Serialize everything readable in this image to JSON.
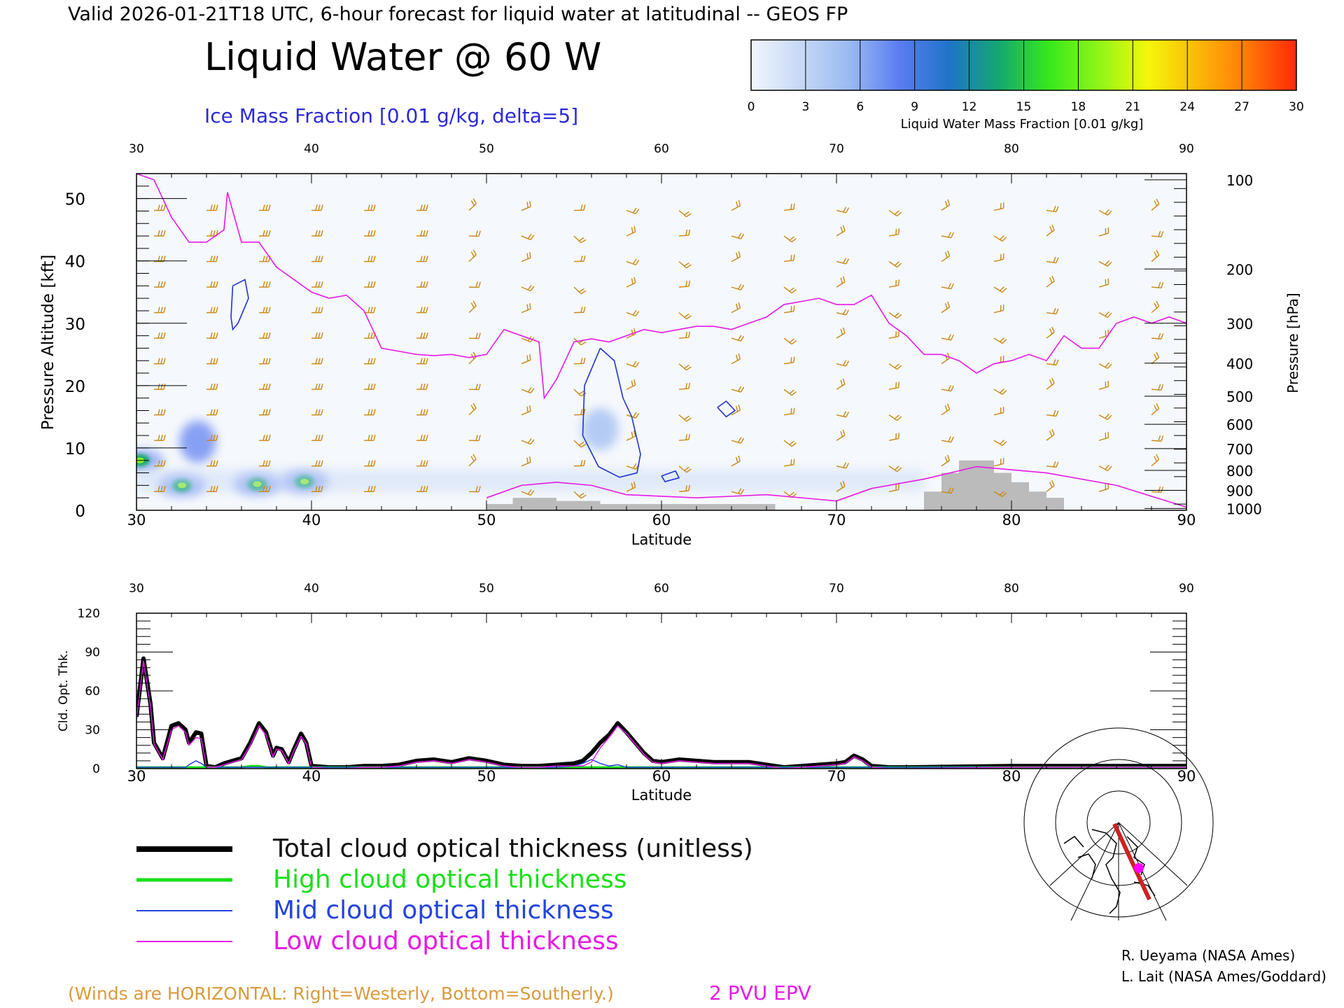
{
  "header": {
    "valid_line": "Valid 2026-01-21T18 UTC, 6-hour forecast for liquid water at latitudinal -- GEOS FP",
    "title": "Liquid Water @ 60 W",
    "ice_label": "Ice Mass Fraction [0.01 g/kg, delta=5]"
  },
  "colorbar": {
    "ticks": [
      "0",
      "3",
      "6",
      "9",
      "12",
      "15",
      "18",
      "21",
      "24",
      "27",
      "30"
    ],
    "label": "Liquid Water Mass Fraction [0.01 g/kg]",
    "colors": [
      "#f2f6fc",
      "#c6d8f6",
      "#9ab9f2",
      "#5a7cf0",
      "#1f74c8",
      "#14a870",
      "#36e81c",
      "#8ef518",
      "#f4f70c",
      "#fbb908",
      "#ff7a08",
      "#ff2808"
    ]
  },
  "colors": {
    "epv": "#e61ae6",
    "ice": "#2233cc",
    "barb": "#c98814",
    "total": "#000000",
    "high": "#18e018",
    "mid": "#2244dd",
    "low": "#e61ae6"
  },
  "chart_data": [
    {
      "type": "heatmap",
      "title": "Liquid Water @ 60 W",
      "xlabel": "Latitude",
      "ylabel": "Pressure Altitude [kft]",
      "y2label": "Pressure [hPa]",
      "xlim": [
        30,
        90
      ],
      "ylim": [
        0,
        54
      ],
      "x_ticks": [
        "30",
        "40",
        "50",
        "60",
        "70",
        "80",
        "90"
      ],
      "y_ticks": [
        "0",
        "10",
        "20",
        "30",
        "40",
        "50"
      ],
      "pressure_ticks": [
        {
          "label": "100",
          "kft": 53
        },
        {
          "label": "200",
          "kft": 38.7
        },
        {
          "label": "300",
          "kft": 30
        },
        {
          "label": "400",
          "kft": 23.6
        },
        {
          "label": "500",
          "kft": 18.3
        },
        {
          "label": "600",
          "kft": 13.8
        },
        {
          "label": "700",
          "kft": 9.9
        },
        {
          "label": "800",
          "kft": 6.4
        },
        {
          "label": "900",
          "kft": 3.2
        },
        {
          "label": "1000",
          "kft": 0.3
        }
      ],
      "epv_2pvu_line": {
        "lat": [
          30,
          31,
          32,
          33,
          34,
          35,
          35.2,
          36,
          37,
          38,
          39,
          40,
          41,
          42,
          43,
          44,
          45,
          46,
          47,
          48,
          49,
          50,
          51,
          52,
          53,
          53.3,
          54,
          55,
          56,
          57,
          58,
          59,
          60,
          61,
          62,
          63,
          64,
          65,
          66,
          67,
          68,
          69,
          70,
          71,
          72,
          73,
          74,
          75,
          76,
          77,
          78,
          79,
          80,
          81,
          82,
          83,
          84,
          85,
          86,
          87,
          88,
          89,
          90
        ],
        "kft": [
          54,
          53,
          47,
          43,
          43,
          45,
          51,
          43,
          43,
          39,
          37,
          35,
          34,
          34.5,
          32,
          26,
          25.5,
          25,
          24.8,
          25,
          24.5,
          25,
          29,
          28,
          27,
          18,
          21,
          27,
          27.5,
          27,
          28,
          29,
          28.5,
          29,
          29.5,
          29.5,
          29,
          30,
          31,
          33,
          33.5,
          34,
          33,
          33,
          34.5,
          30,
          28,
          25,
          25,
          24,
          22,
          23.5,
          24,
          25,
          24,
          28,
          26,
          26,
          30,
          31,
          30,
          31,
          30
        ]
      },
      "liquid_water_blobs": [
        {
          "lat": 30.2,
          "kft": 8,
          "value": 20
        },
        {
          "lat": 32.6,
          "kft": 4,
          "value": 20
        },
        {
          "lat": 36.9,
          "kft": 4.2,
          "value": 18
        },
        {
          "lat": 39.6,
          "kft": 4.6,
          "value": 20
        },
        {
          "lat": 33.5,
          "kft": 11,
          "value": 8
        },
        {
          "lat": 56.5,
          "kft": 13,
          "value": 6
        }
      ],
      "ice_contours": [
        {
          "lat": [
            35.5,
            36.2,
            36.4,
            35.8,
            35.5,
            35.4,
            35.5
          ],
          "kft": [
            36,
            37,
            34,
            30,
            29,
            31,
            36
          ]
        },
        {
          "lat": [
            56.5,
            57.3,
            57.8,
            58.3,
            58.8,
            58.6,
            57.6,
            56.4,
            55.5,
            55.6,
            56.5
          ],
          "kft": [
            26,
            24,
            18,
            15,
            9,
            6,
            5.3,
            7,
            12,
            20,
            26
          ]
        },
        {
          "lat": [
            63.2,
            63.7,
            64.2,
            63.7,
            63.2
          ],
          "kft": [
            16.5,
            17.5,
            16,
            15,
            16.5
          ]
        },
        {
          "lat": [
            60,
            60.8,
            61,
            60.2,
            60
          ],
          "kft": [
            5.5,
            6.3,
            5.2,
            4.6,
            5.5
          ]
        }
      ],
      "terrain": [
        {
          "lat0": 50,
          "lat1": 51.5,
          "kft": 1
        },
        {
          "lat0": 51.5,
          "lat1": 54,
          "kft": 2
        },
        {
          "lat0": 54,
          "lat1": 56.5,
          "kft": 1.5
        },
        {
          "lat0": 56.5,
          "lat1": 66.5,
          "kft": 1
        },
        {
          "lat0": 75,
          "lat1": 76,
          "kft": 3
        },
        {
          "lat0": 76,
          "lat1": 77,
          "kft": 6
        },
        {
          "lat0": 77,
          "lat1": 79,
          "kft": 8
        },
        {
          "lat0": 79,
          "lat1": 80,
          "kft": 6
        },
        {
          "lat0": 80,
          "lat1": 81,
          "kft": 4.5
        },
        {
          "lat0": 81,
          "lat1": 82,
          "kft": 3
        },
        {
          "lat0": 82,
          "lat1": 83,
          "kft": 2
        }
      ]
    },
    {
      "type": "line",
      "xlabel": "Latitude",
      "ylabel": "Cld. Opt. Thk.",
      "xlim": [
        30,
        90
      ],
      "ylim": [
        0,
        120
      ],
      "x_ticks": [
        "30",
        "40",
        "50",
        "60",
        "70",
        "80",
        "90"
      ],
      "y_ticks": [
        "0",
        "30",
        "60",
        "90",
        "120"
      ],
      "x": [
        30,
        30.4,
        30.8,
        31,
        31.5,
        32,
        32.4,
        32.8,
        33,
        33.4,
        33.7,
        34,
        34.5,
        35,
        35.5,
        36,
        36.5,
        37,
        37.4,
        37.8,
        38,
        38.3,
        38.7,
        39,
        39.4,
        39.7,
        40,
        41,
        42,
        43,
        44,
        45,
        46,
        47,
        48,
        49,
        50,
        51,
        52,
        53,
        54,
        55,
        55.5,
        56,
        56.5,
        57,
        57.5,
        58,
        58.5,
        59,
        59.5,
        60,
        61,
        62,
        63,
        64,
        65,
        66,
        67,
        68,
        69,
        70,
        70.5,
        71,
        71.5,
        72,
        73,
        74,
        80,
        85,
        90
      ],
      "series": [
        {
          "name": "Total cloud optical thickness (unitless)",
          "values": [
            40,
            85,
            50,
            20,
            8,
            33,
            35,
            30,
            20,
            28,
            27,
            2,
            1,
            4,
            6,
            8,
            20,
            35,
            28,
            10,
            16,
            15,
            5,
            15,
            27,
            20,
            2,
            1,
            1,
            2,
            2,
            3,
            6,
            7,
            5,
            8,
            6,
            3,
            2,
            2,
            3,
            4,
            6,
            12,
            20,
            26,
            35,
            28,
            20,
            12,
            6,
            5,
            7,
            6,
            5,
            5,
            5,
            3,
            1,
            2,
            3,
            4,
            5,
            10,
            7,
            2,
            1,
            1,
            2,
            2,
            2
          ]
        },
        {
          "name": "High cloud optical thickness",
          "values": [
            1,
            1,
            1,
            1,
            1,
            1,
            1,
            1,
            1,
            1,
            1,
            1,
            1,
            1,
            1,
            1,
            2,
            2,
            1,
            1,
            1,
            1,
            1,
            1,
            1,
            1,
            1,
            1,
            1,
            1,
            1,
            1,
            1,
            1,
            1,
            1,
            1,
            1,
            1,
            1,
            1,
            1,
            1,
            1,
            1,
            1,
            1,
            1,
            1,
            1,
            1,
            1,
            1,
            1,
            1,
            1,
            1,
            1,
            1,
            1,
            1,
            1,
            1,
            1,
            1,
            1,
            1,
            1,
            1,
            1,
            1
          ]
        },
        {
          "name": "Mid cloud optical thickness",
          "values": [
            1,
            1,
            1,
            1,
            1,
            1,
            1,
            1,
            3,
            6,
            4,
            1,
            1,
            1,
            1,
            1,
            1,
            1,
            1,
            1,
            1,
            1,
            1,
            1,
            1,
            1,
            1,
            1,
            1,
            1,
            1,
            1,
            1,
            1,
            1,
            1,
            1,
            1,
            1,
            1,
            1,
            2,
            4,
            7,
            4,
            2,
            3,
            1,
            1,
            1,
            1,
            1,
            1,
            1,
            1,
            1,
            1,
            1,
            1,
            1,
            1,
            1,
            1,
            1,
            1,
            1,
            1,
            1,
            1,
            1,
            1
          ]
        },
        {
          "name": "Low cloud optical thickness",
          "values": [
            38,
            83,
            48,
            19,
            7,
            30,
            33,
            28,
            18,
            24,
            23,
            1,
            1,
            3,
            5,
            7,
            18,
            33,
            26,
            9,
            15,
            14,
            4,
            14,
            25,
            19,
            1,
            0,
            0,
            1,
            1,
            2,
            5,
            6,
            4,
            7,
            5,
            2,
            1,
            1,
            2,
            2,
            2,
            5,
            16,
            24,
            33,
            27,
            19,
            11,
            5,
            4,
            6,
            5,
            4,
            4,
            4,
            2,
            0,
            1,
            2,
            3,
            4,
            9,
            6,
            1,
            0,
            0,
            1,
            1,
            1
          ]
        }
      ]
    }
  ],
  "legend": {
    "total": "Total cloud optical thickness (unitless)",
    "high": "High cloud optical thickness",
    "mid": "Mid cloud optical thickness",
    "low": "Low cloud optical thickness"
  },
  "footer": {
    "winds_note": "(Winds are HORIZONTAL: Right=Westerly, Bottom=Southerly.)",
    "epv_label": "2 PVU EPV",
    "credit1": "R. Ueyama (NASA Ames)",
    "credit2": "L. Lait (NASA Ames/Goddard)"
  }
}
